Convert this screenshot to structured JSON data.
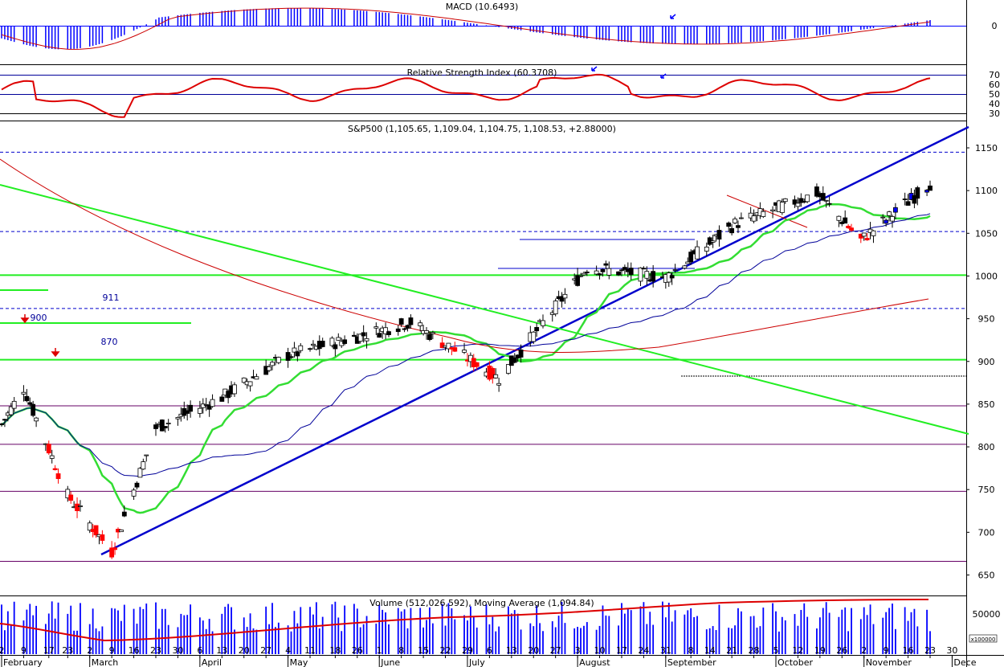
{
  "chart_data": [
    {
      "type": "bar",
      "name": "macd",
      "title": "MACD (10.6493)",
      "y_ticks": [
        "0"
      ],
      "description_values": {
        "min": -4,
        "max": 3
      }
    },
    {
      "type": "line",
      "name": "rsi",
      "title": "Relative Strength Index (60.3708)",
      "y_ticks": [
        "70",
        "60",
        "50",
        "40",
        "30"
      ],
      "reference_lines": [
        70,
        50,
        30
      ]
    },
    {
      "type": "candlestick",
      "name": "price",
      "title": "S&P500 (1,105.65, 1,109.04, 1,104.75, 1,108.53, +2.88000)",
      "ylim": [
        640,
        1175
      ],
      "y_ticks": [
        "1150",
        "1100",
        "1050",
        "1000",
        "950",
        "900",
        "850",
        "800",
        "750",
        "700",
        "650"
      ],
      "annotations": [
        "911",
        "900",
        "870"
      ],
      "horizontal_levels": {
        "dashed_blue": [
          1145,
          1052,
          962
        ],
        "solid_green": [
          1001,
          902
        ],
        "purple": [
          848,
          803,
          748,
          666
        ]
      },
      "key_closes": [
        {
          "date": "2009-02-02",
          "close": 826
        },
        {
          "date": "2009-02-09",
          "close": 869
        },
        {
          "date": "2009-02-23",
          "close": 743
        },
        {
          "date": "2009-03-09",
          "close": 677
        },
        {
          "date": "2009-03-23",
          "close": 822
        },
        {
          "date": "2009-04-13",
          "close": 858
        },
        {
          "date": "2009-05-04",
          "close": 907
        },
        {
          "date": "2009-06-12",
          "close": 946
        },
        {
          "date": "2009-07-10",
          "close": 880
        },
        {
          "date": "2009-08-07",
          "close": 1010
        },
        {
          "date": "2009-09-01",
          "close": 998
        },
        {
          "date": "2009-09-23",
          "close": 1061
        },
        {
          "date": "2009-10-19",
          "close": 1097
        },
        {
          "date": "2009-11-02",
          "close": 1042
        },
        {
          "date": "2009-11-24",
          "close": 1108
        }
      ]
    },
    {
      "type": "bar",
      "name": "volume",
      "title": "Volume (512,026,592), Moving Average (1,094.84)",
      "y_ticks": [
        "50000"
      ],
      "scale_label": "x100000"
    }
  ],
  "x_axis": {
    "day_ticks": [
      "2",
      "9",
      "17",
      "23",
      "2",
      "9",
      "16",
      "23",
      "30",
      "6",
      "13",
      "20",
      "27",
      "4",
      "11",
      "18",
      "26",
      "1",
      "8",
      "15",
      "22",
      "29",
      "6",
      "13",
      "20",
      "27",
      "3",
      "10",
      "17",
      "24",
      "31",
      "8",
      "14",
      "21",
      "28",
      "5",
      "12",
      "19",
      "26",
      "2",
      "9",
      "16",
      "23",
      "30"
    ],
    "months": [
      "February",
      "March",
      "April",
      "May",
      "June",
      "July",
      "August",
      "September",
      "October",
      "November",
      "Dece"
    ]
  },
  "colors": {
    "up_candle": "#ffffff",
    "down_candle": "#000000",
    "red_candle": "#ff0000",
    "blue_candle": "#0000ff",
    "trend_blue": "#0000cc",
    "ma_green": "#33dd33",
    "ma_red": "#cc0000",
    "ma_navy": "#000099",
    "rsi": "#dd0000",
    "macd_bar": "#0000ff"
  }
}
